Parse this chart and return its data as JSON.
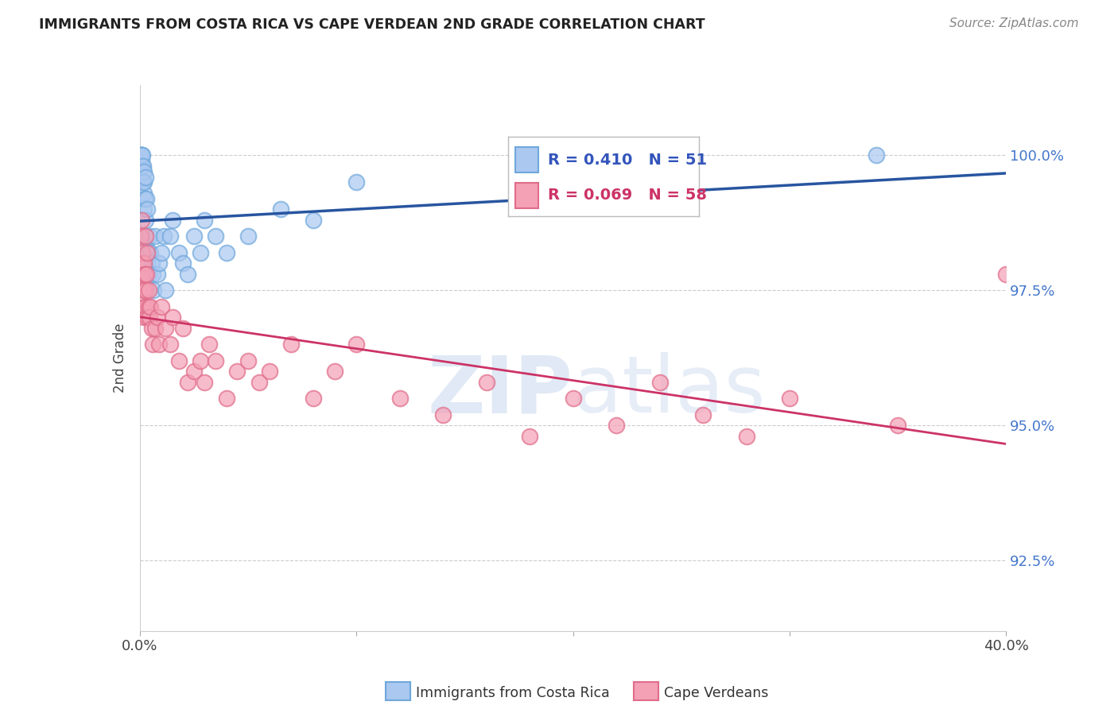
{
  "title": "IMMIGRANTS FROM COSTA RICA VS CAPE VERDEAN 2ND GRADE CORRELATION CHART",
  "source": "Source: ZipAtlas.com",
  "ylabel": "2nd Grade",
  "y_tick_labels": [
    "92.5%",
    "95.0%",
    "97.5%",
    "100.0%"
  ],
  "y_tick_values": [
    92.5,
    95.0,
    97.5,
    100.0
  ],
  "xlim": [
    0.0,
    40.0
  ],
  "ylim": [
    91.2,
    101.3
  ],
  "legend_blue_r": "0.410",
  "legend_blue_n": "51",
  "legend_pink_r": "0.069",
  "legend_pink_n": "58",
  "blue_scatter_x": [
    0.05,
    0.05,
    0.08,
    0.08,
    0.08,
    0.1,
    0.1,
    0.12,
    0.12,
    0.15,
    0.15,
    0.18,
    0.18,
    0.2,
    0.2,
    0.22,
    0.25,
    0.25,
    0.28,
    0.3,
    0.3,
    0.35,
    0.35,
    0.4,
    0.42,
    0.45,
    0.5,
    0.55,
    0.6,
    0.65,
    0.7,
    0.8,
    0.9,
    1.0,
    1.1,
    1.2,
    1.4,
    1.5,
    1.8,
    2.0,
    2.2,
    2.5,
    2.8,
    3.0,
    3.5,
    4.0,
    5.0,
    6.5,
    8.0,
    10.0,
    34.0
  ],
  "blue_scatter_y": [
    99.8,
    100.0,
    99.9,
    100.0,
    100.0,
    99.5,
    100.0,
    99.8,
    100.0,
    99.5,
    99.8,
    99.3,
    99.7,
    99.0,
    99.5,
    99.2,
    98.8,
    99.6,
    98.5,
    98.3,
    99.2,
    98.0,
    99.0,
    98.2,
    97.8,
    98.5,
    98.2,
    98.0,
    97.8,
    97.5,
    98.5,
    97.8,
    98.0,
    98.2,
    98.5,
    97.5,
    98.5,
    98.8,
    98.2,
    98.0,
    97.8,
    98.5,
    98.2,
    98.8,
    98.5,
    98.2,
    98.5,
    99.0,
    98.8,
    99.5,
    100.0
  ],
  "pink_scatter_x": [
    0.05,
    0.08,
    0.1,
    0.1,
    0.12,
    0.15,
    0.18,
    0.18,
    0.2,
    0.22,
    0.25,
    0.25,
    0.28,
    0.3,
    0.35,
    0.35,
    0.4,
    0.42,
    0.45,
    0.5,
    0.55,
    0.6,
    0.7,
    0.8,
    0.9,
    1.0,
    1.2,
    1.4,
    1.5,
    1.8,
    2.0,
    2.2,
    2.5,
    2.8,
    3.0,
    3.2,
    3.5,
    4.0,
    4.5,
    5.0,
    5.5,
    6.0,
    7.0,
    8.0,
    9.0,
    10.0,
    12.0,
    14.0,
    16.0,
    18.0,
    20.0,
    22.0,
    24.0,
    26.0,
    28.0,
    30.0,
    35.0,
    40.0
  ],
  "pink_scatter_y": [
    98.5,
    98.0,
    97.8,
    98.8,
    98.2,
    97.5,
    97.2,
    98.0,
    97.0,
    97.8,
    97.2,
    98.5,
    97.5,
    97.8,
    97.0,
    98.2,
    97.5,
    97.2,
    97.0,
    97.2,
    96.8,
    96.5,
    96.8,
    97.0,
    96.5,
    97.2,
    96.8,
    96.5,
    97.0,
    96.2,
    96.8,
    95.8,
    96.0,
    96.2,
    95.8,
    96.5,
    96.2,
    95.5,
    96.0,
    96.2,
    95.8,
    96.0,
    96.5,
    95.5,
    96.0,
    96.5,
    95.5,
    95.2,
    95.8,
    94.8,
    95.5,
    95.0,
    95.8,
    95.2,
    94.8,
    95.5,
    95.0,
    97.8
  ],
  "blue_color": "#6fa8dc",
  "pink_color": "#e06c8a",
  "blue_line_color": "#2855a0",
  "pink_line_color": "#cc3366",
  "blue_scatter_face": "#aac8f0",
  "pink_scatter_face": "#f4a0b5",
  "watermark_zip": "ZIP",
  "watermark_atlas": "atlas",
  "background_color": "#ffffff",
  "grid_color": "#cccccc"
}
